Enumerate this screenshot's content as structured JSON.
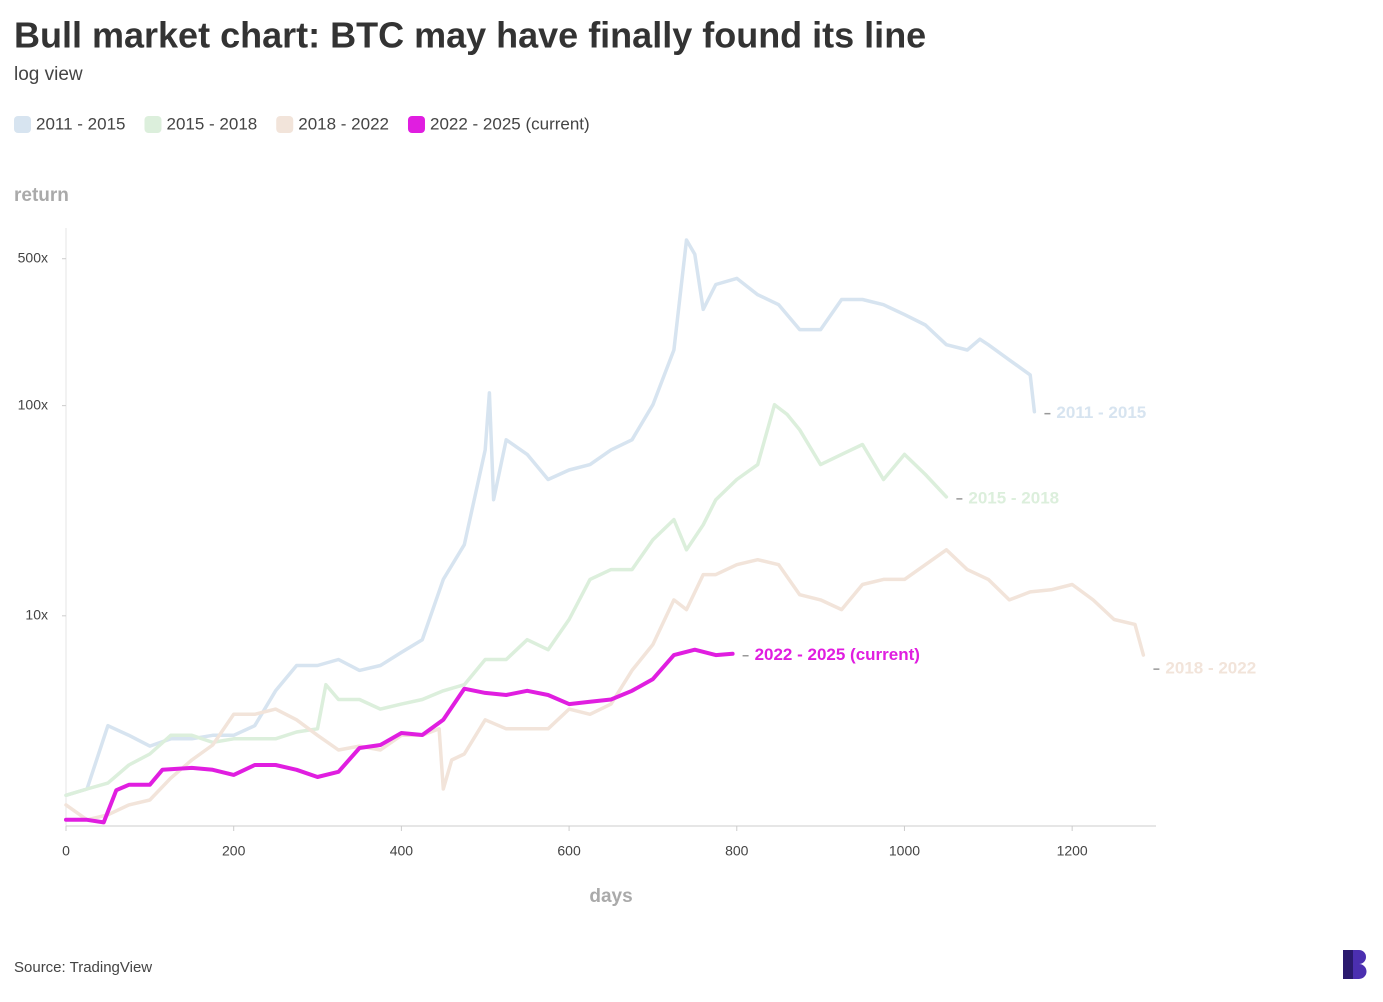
{
  "chart_data": {
    "type": "line",
    "title": "Bull market chart: BTC may have finally found its line",
    "subtitle": "log view",
    "y_label": "return",
    "x_label": "days",
    "source": "Source: TradingView",
    "log_scale": true,
    "xlim": [
      0,
      1300
    ],
    "ylim": [
      1,
      700
    ],
    "xticks": [
      0,
      200,
      400,
      600,
      800,
      1000,
      1200
    ],
    "yticks": [
      {
        "value": 10,
        "label": "10x"
      },
      {
        "value": 100,
        "label": "100x"
      },
      {
        "value": 500,
        "label": "500x"
      }
    ],
    "series": [
      {
        "name": "2011 - 2015",
        "color": "#d7e4f0",
        "x": [
          0,
          25,
          50,
          75,
          100,
          125,
          150,
          175,
          200,
          225,
          250,
          275,
          300,
          325,
          350,
          375,
          400,
          425,
          450,
          475,
          500,
          505,
          510,
          525,
          550,
          575,
          600,
          625,
          650,
          675,
          700,
          725,
          740,
          750,
          760,
          775,
          800,
          825,
          850,
          875,
          900,
          925,
          950,
          975,
          1000,
          1025,
          1050,
          1075,
          1090,
          1100,
          1125,
          1150,
          1155
        ],
        "values": [
          1.4,
          1.5,
          3.0,
          2.7,
          2.4,
          2.6,
          2.6,
          2.7,
          2.7,
          3.0,
          4.4,
          5.8,
          5.8,
          6.2,
          5.5,
          5.8,
          6.7,
          7.7,
          14.9,
          21.8,
          61.6,
          115,
          35.7,
          68.8,
          58.6,
          44.5,
          49.4,
          52.4,
          61.6,
          68.8,
          101,
          184,
          614,
          525,
          287,
          377,
          403,
          337,
          302,
          230,
          230,
          320,
          320,
          302,
          271,
          242,
          195,
          184,
          207,
          195,
          165,
          140,
          93.6
        ]
      },
      {
        "name": "2015 - 2018",
        "color": "#dcefdc",
        "x": [
          0,
          25,
          50,
          75,
          100,
          125,
          150,
          175,
          200,
          225,
          250,
          275,
          300,
          310,
          325,
          350,
          375,
          400,
          425,
          450,
          475,
          500,
          525,
          550,
          575,
          600,
          625,
          650,
          675,
          700,
          725,
          740,
          760,
          775,
          800,
          825,
          845,
          860,
          875,
          900,
          925,
          950,
          975,
          1000,
          1025,
          1050
        ],
        "values": [
          1.4,
          1.5,
          1.6,
          1.95,
          2.2,
          2.7,
          2.7,
          2.5,
          2.6,
          2.6,
          2.6,
          2.8,
          2.9,
          4.7,
          4.0,
          4.0,
          3.6,
          3.8,
          4.0,
          4.4,
          4.7,
          6.2,
          6.2,
          7.7,
          6.9,
          9.6,
          14.9,
          16.6,
          16.6,
          23,
          28.7,
          20.6,
          27.1,
          35.7,
          44.5,
          52.4,
          101,
          90.8,
          76.7,
          52.4,
          58.6,
          65.3,
          44.5,
          58.6,
          47,
          36.8
        ]
      },
      {
        "name": "2018 - 2022",
        "color": "#f2e4da",
        "x": [
          0,
          25,
          50,
          75,
          100,
          125,
          150,
          175,
          200,
          225,
          250,
          275,
          300,
          325,
          350,
          375,
          400,
          425,
          445,
          450,
          460,
          475,
          500,
          525,
          550,
          575,
          600,
          625,
          650,
          675,
          700,
          725,
          740,
          760,
          775,
          800,
          825,
          850,
          875,
          900,
          925,
          950,
          975,
          1000,
          1025,
          1050,
          1075,
          1100,
          1125,
          1150,
          1175,
          1200,
          1225,
          1250,
          1275,
          1285
        ],
        "values": [
          1.26,
          1.07,
          1.13,
          1.26,
          1.33,
          1.69,
          2.06,
          2.43,
          3.4,
          3.4,
          3.6,
          3.2,
          2.7,
          2.3,
          2.4,
          2.3,
          2.7,
          2.7,
          2.9,
          1.5,
          2.06,
          2.2,
          3.2,
          2.9,
          2.9,
          2.9,
          3.6,
          3.4,
          3.8,
          5.5,
          7.3,
          11.9,
          10.7,
          15.7,
          15.7,
          17.5,
          18.5,
          17.5,
          12.6,
          11.9,
          10.7,
          14.1,
          14.9,
          14.9,
          17.5,
          20.6,
          16.6,
          14.9,
          11.9,
          13,
          13.3,
          14.1,
          11.9,
          9.6,
          9.1,
          6.5
        ]
      },
      {
        "name": "2022 - 2025 (current)",
        "color": "#e01ee0",
        "x": [
          0,
          25,
          45,
          60,
          75,
          100,
          115,
          150,
          175,
          200,
          225,
          250,
          275,
          300,
          325,
          350,
          375,
          400,
          425,
          450,
          475,
          500,
          525,
          550,
          575,
          600,
          625,
          650,
          675,
          700,
          725,
          750,
          775,
          795
        ],
        "values": [
          1.07,
          1.07,
          1.04,
          1.48,
          1.57,
          1.57,
          1.85,
          1.89,
          1.85,
          1.75,
          1.95,
          1.95,
          1.85,
          1.71,
          1.81,
          2.35,
          2.43,
          2.77,
          2.71,
          3.2,
          4.5,
          4.3,
          4.2,
          4.4,
          4.2,
          3.8,
          3.9,
          4.0,
          4.4,
          5.0,
          6.5,
          6.9,
          6.5,
          6.6
        ]
      }
    ]
  }
}
